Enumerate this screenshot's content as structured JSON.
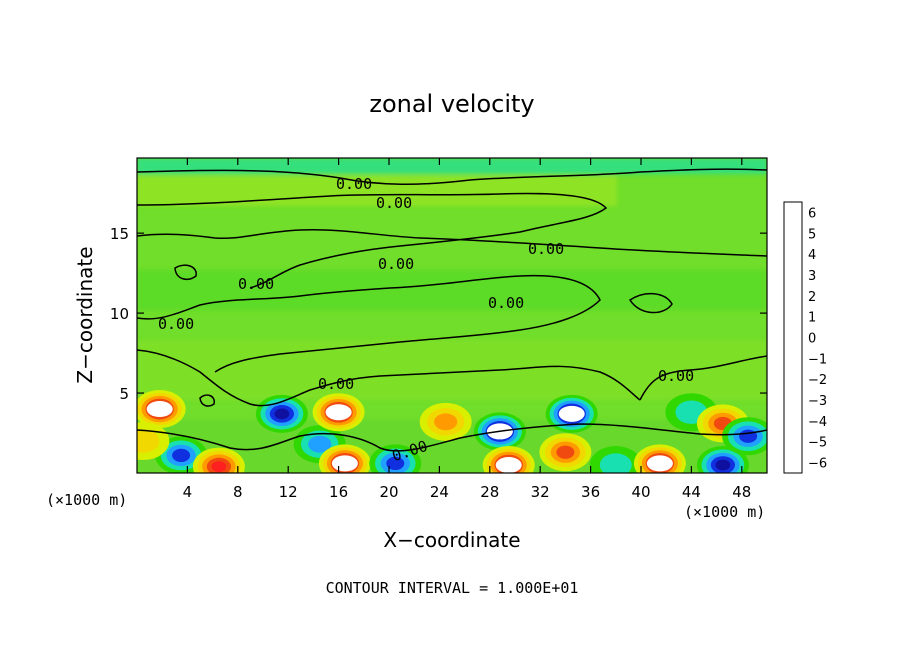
{
  "chart_data": {
    "type": "heatmap",
    "title": "zonal velocity",
    "xlabel": "X−coordinate",
    "ylabel": "Z−coordinate",
    "x_unit_left": "(×1000 m)",
    "x_unit_right": "(×1000 m)",
    "xlim": [
      0,
      50
    ],
    "ylim": [
      0,
      19.7
    ],
    "xticks": [
      4,
      8,
      12,
      16,
      20,
      24,
      28,
      32,
      36,
      40,
      44,
      48
    ],
    "yticks": [
      5,
      10,
      15
    ],
    "colorbar": {
      "ticks": [
        6,
        5,
        4,
        3,
        2,
        1,
        0,
        -1,
        -2,
        -3,
        -4,
        -5,
        -6
      ],
      "tick_labels": [
        "6",
        "5",
        "4",
        "3",
        "2",
        "1",
        "0",
        "−1",
        "−2",
        "−3",
        "−4",
        "−5",
        "−6"
      ],
      "colors": [
        "#f4a6a6",
        "#ff2020",
        "#f04a10",
        "#ff9a00",
        "#f0d800",
        "#d8f000",
        "#88e000",
        "#30d800",
        "#18e0b0",
        "#20a0ff",
        "#1030e0",
        "#1010a0",
        "#7000a0"
      ]
    },
    "contour_level_label": "0.00",
    "footer": "CONTOUR INTERVAL = 1.000E+01",
    "blobs": [
      {
        "x": 1.8,
        "z": 4.0,
        "v": 6
      },
      {
        "x": 3.5,
        "z": 1.1,
        "v": -4
      },
      {
        "x": 6.5,
        "z": 0.4,
        "v": 5
      },
      {
        "x": 11.5,
        "z": 3.7,
        "v": -5
      },
      {
        "x": 14.5,
        "z": 1.8,
        "v": -3
      },
      {
        "x": 16.0,
        "z": 3.8,
        "v": 6
      },
      {
        "x": 16.5,
        "z": 0.6,
        "v": 6
      },
      {
        "x": 20.5,
        "z": 0.6,
        "v": -4
      },
      {
        "x": 24.5,
        "z": 3.2,
        "v": 3
      },
      {
        "x": 28.8,
        "z": 2.6,
        "v": -6
      },
      {
        "x": 29.5,
        "z": 0.5,
        "v": 6
      },
      {
        "x": 34.5,
        "z": 3.7,
        "v": -6
      },
      {
        "x": 34.0,
        "z": 1.3,
        "v": 4
      },
      {
        "x": 38.0,
        "z": 0.5,
        "v": -2
      },
      {
        "x": 41.5,
        "z": 0.6,
        "v": 6
      },
      {
        "x": 44.0,
        "z": 3.8,
        "v": -2
      },
      {
        "x": 46.5,
        "z": 3.1,
        "v": 4
      },
      {
        "x": 46.5,
        "z": 0.5,
        "v": -5
      },
      {
        "x": 48.5,
        "z": 2.3,
        "v": -4
      },
      {
        "x": 0.5,
        "z": 2.0,
        "v": 2
      }
    ]
  }
}
